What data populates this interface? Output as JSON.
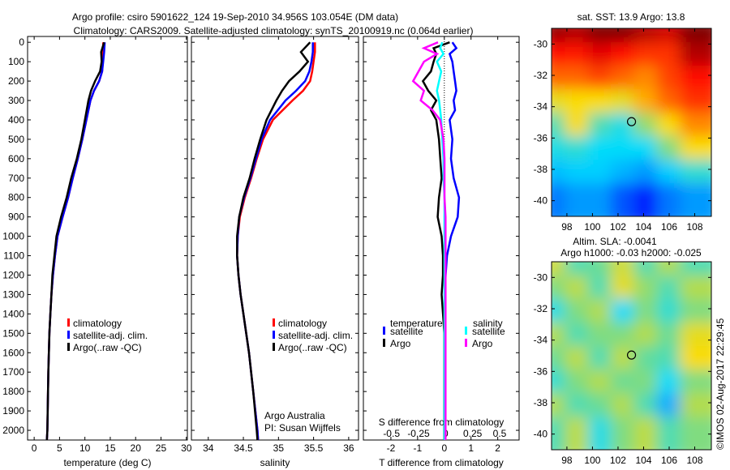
{
  "title": {
    "line1": "Argo profile: csiro 5901622_124 19-Sep-2010 34.956S 103.054E (DM data)",
    "line2": "Climatology: CARS2009. Satellite-adjusted climatology: synTS_20100919.nc (0.064d earlier)"
  },
  "footer_stamp": "©IMOS 02-Aug-2017 22:29:45",
  "colors": {
    "climatology": "#ff0000",
    "satellite": "#0000ff",
    "argo": "#000000",
    "s_satellite": "#00ffff",
    "s_argo": "#ff00ff"
  },
  "chart_data": [
    {
      "type": "line",
      "id": "temperature",
      "xlabel": "temperature (deg C)",
      "xlim": [
        -1.3,
        30.2
      ],
      "ylim": [
        2050,
        -30
      ],
      "xticks": [
        0,
        5,
        10,
        15,
        20,
        25,
        30
      ],
      "yticks": [
        0,
        100,
        200,
        300,
        400,
        500,
        600,
        700,
        800,
        900,
        1000,
        1100,
        1200,
        1300,
        1400,
        1500,
        1600,
        1700,
        1800,
        1900,
        2000
      ],
      "legend": [
        "climatology",
        "satellite-adj. clim.",
        "Argo(..raw -QC)"
      ],
      "depth": [
        0,
        50,
        100,
        150,
        200,
        250,
        300,
        400,
        500,
        600,
        700,
        800,
        900,
        1000,
        1100,
        1200,
        1300,
        1400,
        1500,
        1700,
        2000,
        2050
      ],
      "series": [
        {
          "name": "climatology",
          "color": "#ff0000",
          "values": [
            13.6,
            13.6,
            13.5,
            13.4,
            12.8,
            11.8,
            11.1,
            10.3,
            9.5,
            8.6,
            7.6,
            6.7,
            5.6,
            4.6,
            4.1,
            3.7,
            3.4,
            3.2,
            3.0,
            2.8,
            2.6,
            2.5
          ]
        },
        {
          "name": "satellite-adj. clim.",
          "color": "#0000ff",
          "values": [
            13.9,
            13.8,
            13.6,
            13.4,
            12.8,
            11.8,
            11.1,
            10.3,
            9.5,
            8.6,
            7.6,
            6.7,
            5.6,
            4.6,
            4.1,
            3.7,
            3.4,
            3.2,
            3.0,
            2.8,
            2.6,
            2.5
          ]
        },
        {
          "name": "Argo(..raw -QC)",
          "color": "#000000",
          "values": [
            13.8,
            13.2,
            13.3,
            13.0,
            12.0,
            11.2,
            10.7,
            10.0,
            9.3,
            8.4,
            7.3,
            6.4,
            5.3,
            4.4,
            4.0,
            3.6,
            3.4,
            3.2,
            3.0,
            2.8,
            2.6,
            2.5
          ]
        }
      ]
    },
    {
      "type": "line",
      "id": "salinity",
      "xlabel": "salinity",
      "xlim": [
        33.76,
        36.14
      ],
      "ylim": [
        2050,
        -30
      ],
      "xticks": [
        34,
        34.5,
        35,
        35.5,
        36
      ],
      "legend": [
        "climatology",
        "satellite-adj. clim.",
        "Argo(..raw -QC)"
      ],
      "annotation": [
        "Argo Australia",
        "PI: Susan Wijffels"
      ],
      "depth": [
        0,
        50,
        100,
        150,
        200,
        250,
        300,
        400,
        500,
        600,
        700,
        800,
        900,
        1000,
        1100,
        1200,
        1300,
        1400,
        1600,
        1800,
        2000,
        2050
      ],
      "series": [
        {
          "name": "climatology",
          "color": "#ff0000",
          "values": [
            35.52,
            35.52,
            35.5,
            35.48,
            35.45,
            35.35,
            35.2,
            34.92,
            34.78,
            34.69,
            34.61,
            34.52,
            34.45,
            34.42,
            34.41,
            34.43,
            34.46,
            34.5,
            34.58,
            34.64,
            34.7,
            34.71
          ]
        },
        {
          "name": "satellite-adj. clim.",
          "color": "#0000ff",
          "values": [
            35.49,
            35.49,
            35.47,
            35.44,
            35.38,
            35.25,
            35.1,
            34.88,
            34.76,
            34.68,
            34.6,
            34.51,
            34.44,
            34.42,
            34.41,
            34.43,
            34.46,
            34.5,
            34.58,
            34.64,
            34.7,
            34.71
          ]
        },
        {
          "name": "Argo(..raw -QC)",
          "color": "#000000",
          "values": [
            35.45,
            35.32,
            35.42,
            35.3,
            35.15,
            35.05,
            34.97,
            34.83,
            34.74,
            34.66,
            34.59,
            34.5,
            34.44,
            34.41,
            34.41,
            34.43,
            34.46,
            34.5,
            34.58,
            34.64,
            34.69,
            34.7
          ]
        }
      ]
    },
    {
      "type": "line",
      "id": "difference",
      "xlabel": "T difference from climatology",
      "xlabel_top": "S difference from climatology",
      "xlim": [
        -3.03,
        2.8
      ],
      "xticks": [
        -2,
        -1,
        0,
        1,
        2
      ],
      "xlim_s": [
        -0.76,
        0.68
      ],
      "xticks_s": [
        -0.5,
        -0.25,
        0,
        0.25,
        0.5
      ],
      "xticklabels_s": [
        "-0.5",
        "-0.25",
        "0",
        "0.25",
        "0.5"
      ],
      "ylim": [
        2050,
        -30
      ],
      "legend": {
        "temperature_title": "temperature",
        "salinity_title": "salinity",
        "t_satellite": "satellite",
        "t_argo": "Argo",
        "s_satellite": "satellite",
        "s_argo": "Argo"
      },
      "depth": [
        0,
        30,
        60,
        100,
        150,
        200,
        250,
        300,
        350,
        400,
        500,
        600,
        700,
        800,
        900,
        1000,
        1100,
        1200,
        1300,
        1500,
        2000,
        2050
      ],
      "series": [
        {
          "name": "T satellite",
          "axis": "T",
          "color": "#0000ff",
          "values": [
            0.3,
            0.45,
            0.2,
            0.3,
            0.35,
            0.4,
            0.45,
            0.35,
            0.4,
            0.2,
            0.3,
            0.25,
            0.35,
            0.55,
            0.5,
            0.25,
            0.1,
            0.05,
            0.02,
            0.01,
            0.0,
            0.0
          ]
        },
        {
          "name": "T Argo",
          "axis": "T",
          "color": "#000000",
          "values": [
            0.2,
            -0.4,
            -0.3,
            -0.4,
            -0.5,
            -0.8,
            -0.6,
            -0.3,
            -0.5,
            -0.3,
            -0.2,
            -0.15,
            -0.1,
            -0.2,
            -0.25,
            -0.1,
            -0.05,
            -0.05,
            -0.1,
            0.0,
            0.0,
            0.0
          ]
        },
        {
          "name": "S satellite",
          "axis": "S",
          "color": "#00ffff",
          "values": [
            -0.03,
            -0.05,
            -0.02,
            -0.08,
            -0.04,
            -0.06,
            -0.08,
            -0.06,
            -0.05,
            -0.04,
            -0.03,
            -0.02,
            -0.02,
            -0.01,
            -0.01,
            -0.01,
            -0.01,
            -0.01,
            -0.01,
            -0.01,
            -0.01,
            -0.01
          ]
        },
        {
          "name": "S Argo",
          "axis": "S",
          "color": "#ff00ff",
          "values": [
            -0.07,
            -0.2,
            -0.08,
            -0.2,
            -0.25,
            -0.3,
            -0.2,
            -0.23,
            -0.12,
            -0.05,
            -0.02,
            -0.01,
            -0.01,
            -0.01,
            0.0,
            0.0,
            0.0,
            0.0,
            0.0,
            0.0,
            0.0,
            0.0
          ]
        }
      ]
    },
    {
      "type": "heatmap",
      "id": "sst_map",
      "title": "sat. SST: 13.9 Argo: 13.8",
      "xlim": [
        96.8,
        109.3
      ],
      "ylim": [
        -29,
        -41
      ],
      "xticks": [
        98,
        100,
        102,
        104,
        106,
        108
      ],
      "yticks": [
        -30,
        -32,
        -34,
        -36,
        -38,
        -40
      ],
      "marker": {
        "lon": 103.054,
        "lat": -34.956
      },
      "lon_edges": [
        96.8,
        98.6,
        100.4,
        102.2,
        104,
        105.8,
        107.6,
        109.3
      ],
      "lat_edges": [
        -29,
        -30.5,
        -32,
        -33.5,
        -35,
        -36.5,
        -38,
        -39.5,
        -41
      ],
      "values": [
        [
          0.98,
          0.95,
          1.0,
          1.0,
          0.95,
          0.92,
          1.0
        ],
        [
          0.86,
          0.85,
          0.9,
          0.86,
          0.82,
          0.82,
          0.95
        ],
        [
          0.76,
          0.76,
          0.8,
          0.76,
          0.72,
          0.8,
          0.86
        ],
        [
          0.6,
          0.62,
          0.62,
          0.6,
          0.68,
          0.76,
          0.82
        ],
        [
          0.45,
          0.62,
          0.45,
          0.4,
          0.52,
          0.62,
          0.72
        ],
        [
          0.4,
          0.42,
          0.38,
          0.38,
          0.38,
          0.5,
          0.62
        ],
        [
          0.34,
          0.36,
          0.36,
          0.33,
          0.3,
          0.36,
          0.42
        ],
        [
          0.26,
          0.3,
          0.3,
          0.22,
          0.16,
          0.26,
          0.3
        ]
      ]
    },
    {
      "type": "heatmap",
      "id": "sla_map",
      "title": "Altim. SLA: -0.0041",
      "subtitle": "Argo h1000: -0.03 h2000: -0.025",
      "xlim": [
        96.8,
        109.3
      ],
      "ylim": [
        -29,
        -41
      ],
      "xticks": [
        98,
        100,
        102,
        104,
        106,
        108
      ],
      "yticks": [
        -30,
        -32,
        -34,
        -36,
        -38,
        -40
      ],
      "marker": {
        "lon": 103.054,
        "lat": -34.956
      },
      "lon_edges": [
        96.8,
        98.6,
        100.4,
        102.2,
        104,
        105.8,
        107.6,
        109.3
      ],
      "lat_edges": [
        -29,
        -30.5,
        -32,
        -33.5,
        -35,
        -36.5,
        -38,
        -39.5,
        -41
      ],
      "values": [
        [
          0.58,
          0.45,
          0.48,
          0.58,
          0.45,
          0.55,
          0.45
        ],
        [
          0.5,
          0.56,
          0.45,
          0.6,
          0.52,
          0.45,
          0.55
        ],
        [
          0.4,
          0.5,
          0.55,
          0.38,
          0.5,
          0.42,
          0.5
        ],
        [
          0.55,
          0.45,
          0.5,
          0.5,
          0.55,
          0.48,
          0.6
        ],
        [
          0.48,
          0.56,
          0.45,
          0.56,
          0.47,
          0.45,
          0.62
        ],
        [
          0.42,
          0.5,
          0.55,
          0.48,
          0.5,
          0.38,
          0.5
        ],
        [
          0.55,
          0.45,
          0.48,
          0.55,
          0.45,
          0.32,
          0.55
        ],
        [
          0.45,
          0.56,
          0.4,
          0.5,
          0.56,
          0.45,
          0.5
        ]
      ]
    }
  ]
}
